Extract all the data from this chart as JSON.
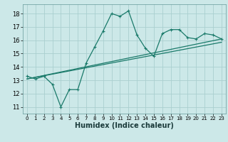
{
  "xlabel": "Humidex (Indice chaleur)",
  "bg_color": "#cce8e8",
  "line_color": "#1a7a6a",
  "grid_color": "#aacfcf",
  "xlim": [
    -0.5,
    23.5
  ],
  "ylim": [
    10.5,
    18.7
  ],
  "yticks": [
    11,
    12,
    13,
    14,
    15,
    16,
    17,
    18
  ],
  "xticks": [
    0,
    1,
    2,
    3,
    4,
    5,
    6,
    7,
    8,
    9,
    10,
    11,
    12,
    13,
    14,
    15,
    16,
    17,
    18,
    19,
    20,
    21,
    22,
    23
  ],
  "line1_x": [
    0,
    1,
    2,
    3,
    4,
    5,
    6,
    7,
    8,
    9,
    10,
    11,
    12,
    13,
    14,
    15,
    16,
    17,
    18,
    19,
    20,
    21,
    22,
    23
  ],
  "line1_y": [
    13.3,
    13.1,
    13.3,
    12.7,
    11.0,
    12.3,
    12.3,
    14.3,
    15.5,
    16.7,
    18.0,
    17.8,
    18.2,
    16.4,
    15.4,
    14.8,
    16.5,
    16.8,
    16.8,
    16.2,
    16.1,
    16.5,
    16.4,
    16.1
  ],
  "line2_x": [
    0,
    23
  ],
  "line2_y": [
    13.1,
    16.1
  ],
  "line3_x": [
    0,
    23
  ],
  "line3_y": [
    13.1,
    15.85
  ],
  "xlabel_fontsize": 7,
  "tick_fontsize": 5,
  "linewidth": 0.9,
  "marker_size": 3
}
